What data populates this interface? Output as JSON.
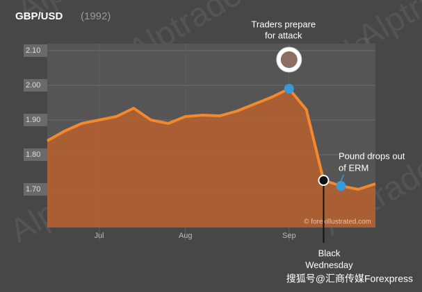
{
  "chart_data": {
    "type": "area",
    "title": "GBP/USD",
    "subtitle": "(1992)",
    "categories": [
      null,
      null,
      null,
      "Jul",
      null,
      null,
      null,
      null,
      "Aug",
      null,
      null,
      null,
      null,
      null,
      "Sep",
      null,
      null,
      null,
      null,
      null
    ],
    "series": [
      {
        "color": "#f0892f",
        "values": [
          1.84,
          1.868,
          1.89,
          1.9,
          1.91,
          1.934,
          1.9,
          1.89,
          1.91,
          1.914,
          1.912,
          1.926,
          1.946,
          1.966,
          1.99,
          1.93,
          1.726,
          1.71,
          1.7,
          1.716
        ]
      }
    ],
    "ylim": [
      1.59,
      2.12
    ],
    "yticks": [
      {
        "value": 1.7,
        "label": "1.70"
      },
      {
        "value": 1.8,
        "label": "1.80"
      },
      {
        "value": 1.9,
        "label": "1.90"
      },
      {
        "value": 2.0,
        "label": "2.00"
      },
      {
        "value": 2.1,
        "label": "2.10"
      }
    ],
    "grid": true,
    "annotations": [
      [
        "Traders prepare",
        "for attack"
      ],
      [
        "Black",
        "Wednesday"
      ],
      [
        "Pound drops out",
        "of ERM"
      ]
    ],
    "source": "© forexillustrated.com",
    "watermark": "Alptrade",
    "footer": "搜狐号@汇商传媒Forexpress"
  }
}
